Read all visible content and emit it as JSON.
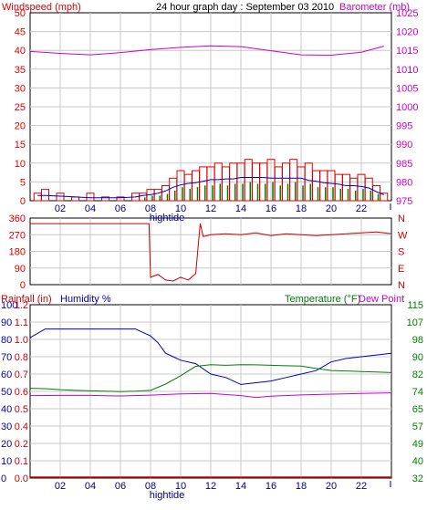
{
  "title": "24 hour graph day : September 03 2010",
  "colors": {
    "wind": "#e00000",
    "wind_avg": "#0000cc",
    "wind_dir_gust": "#008000",
    "barometer": "#cc00cc",
    "wind_dir": "#cc0000",
    "rain": "#cc0000",
    "humidity": "#0000bb",
    "temperature": "#008000",
    "dewpoint": "#cc00cc",
    "grid": "#c8c8c8",
    "frame": "#000000"
  },
  "x_ticks": [
    "02",
    "04",
    "06",
    "08",
    "10",
    "12",
    "14",
    "16",
    "18",
    "20",
    "22"
  ],
  "hightide_label": "hightide",
  "panel1": {
    "left_label": "Windspeed (mph)",
    "right_label": "Barometer (mb)",
    "left_ticks": [
      "0",
      "5",
      "10",
      "15",
      "20",
      "25",
      "30",
      "35",
      "40",
      "45",
      "50"
    ],
    "right_ticks": [
      "975",
      "980",
      "985",
      "990",
      "995",
      "1000",
      "1005",
      "1010",
      "1015",
      "1020",
      "1025"
    ]
  },
  "panel2": {
    "left_ticks": [
      "0",
      "90",
      "180",
      "270",
      "360"
    ],
    "right_ticks": [
      "N",
      "E",
      "S",
      "W",
      "N"
    ]
  },
  "panel3": {
    "rain_label": "Rainfall (in)",
    "humidity_label": "Humidity %",
    "temp_label": "Temperature (°F)",
    "dew_label": "Dew Point",
    "humidity_ticks": [
      "0",
      "10",
      "20",
      "30",
      "40",
      "50",
      "60",
      "70",
      "80",
      "90",
      "100"
    ],
    "rain_ticks": [
      "0.0",
      "0.1",
      "0.2",
      "0.4",
      "0.5",
      "0.6",
      "0.7",
      "0.8",
      "1.0",
      "1.1",
      "1.2"
    ],
    "temp_ticks": [
      "32",
      "40",
      "49",
      "57",
      "65",
      "74",
      "82",
      "90",
      "98",
      "107",
      "115"
    ]
  },
  "chart_data": [
    {
      "type": "bar",
      "title": "24 hour graph day : September 03 2010",
      "x_range_hours": [
        0,
        24
      ],
      "ylabel": "Windspeed (mph)",
      "ylim": [
        0,
        50
      ],
      "y2label": "Barometer (mb)",
      "y2lim": [
        975,
        1025
      ],
      "series": [
        {
          "name": "Windspeed (mph)",
          "x": [
            0.5,
            1,
            2,
            3,
            4,
            5,
            6,
            7,
            7.5,
            8,
            8.5,
            9,
            9.5,
            10,
            10.5,
            11,
            11.5,
            12,
            12.5,
            13,
            13.5,
            14,
            14.5,
            15,
            15.5,
            16,
            16.5,
            17,
            17.5,
            18,
            18.5,
            19,
            19.5,
            20,
            20.5,
            21,
            21.5,
            22,
            22.5,
            23,
            23.5
          ],
          "values": [
            2,
            3,
            2,
            1,
            2,
            1,
            1,
            2,
            2,
            3,
            3,
            4,
            6,
            8,
            7,
            8,
            9,
            9,
            10,
            9,
            10,
            10,
            11,
            10,
            10,
            11,
            9,
            10,
            11,
            9,
            10,
            8,
            8,
            8,
            7,
            7,
            6,
            7,
            6,
            4,
            2
          ]
        },
        {
          "name": "Barometer (mb)",
          "x": [
            0,
            2,
            4,
            6,
            8,
            10,
            12,
            14,
            16,
            18,
            20,
            22,
            23.5
          ],
          "values": [
            1014.7,
            1014.2,
            1013.8,
            1014.4,
            1015.2,
            1015.8,
            1016.2,
            1016.0,
            1014.9,
            1013.8,
            1013.7,
            1014.5,
            1016.1
          ]
        }
      ]
    },
    {
      "type": "line",
      "x_range_hours": [
        0,
        24
      ],
      "ylim": [
        0,
        360
      ],
      "series": [
        {
          "name": "Wind direction",
          "x": [
            0,
            7.9,
            8.0,
            8.5,
            9,
            9.5,
            10,
            10.5,
            11,
            11.3,
            11.5,
            12,
            13,
            14,
            15,
            16,
            17,
            18,
            19,
            20,
            21,
            22,
            23,
            24
          ],
          "values": [
            330,
            330,
            40,
            55,
            25,
            20,
            40,
            25,
            60,
            330,
            260,
            270,
            275,
            270,
            280,
            265,
            275,
            270,
            265,
            270,
            275,
            280,
            285,
            275
          ]
        }
      ]
    },
    {
      "type": "line",
      "x_range_hours": [
        0,
        24
      ],
      "ylim": [
        0,
        100
      ],
      "series": [
        {
          "name": "Humidity %",
          "x": [
            0,
            1,
            2,
            3,
            4,
            5,
            6,
            7,
            7.5,
            8,
            8.5,
            9,
            9.5,
            10,
            11,
            12,
            13,
            14,
            15,
            16,
            17,
            18,
            19,
            20,
            21,
            22,
            23,
            24
          ],
          "values": [
            81,
            86,
            86,
            86,
            86,
            86,
            86,
            86,
            84,
            82,
            78,
            72,
            70,
            68,
            66,
            60,
            58,
            54,
            55,
            56,
            58,
            60,
            62,
            67,
            69,
            70,
            71,
            72
          ]
        },
        {
          "name": "Temperature (°F)",
          "x": [
            0,
            1,
            2,
            3,
            4,
            5,
            6,
            7,
            8,
            9,
            10,
            11,
            12,
            13,
            14,
            15,
            16,
            17,
            18,
            19,
            20,
            21,
            22,
            23,
            24
          ],
          "values": [
            75,
            74.8,
            74.3,
            74.0,
            73.8,
            73.6,
            73.4,
            73.6,
            74.0,
            77.0,
            81.0,
            85.5,
            86.3,
            86.0,
            86.3,
            86.2,
            86.0,
            85.8,
            85.6,
            84.5,
            83.5,
            83.3,
            83.0,
            82.8,
            82.5
          ]
        },
        {
          "name": "Dew Point",
          "x": [
            0,
            2,
            4,
            6,
            8,
            10,
            12,
            14,
            15,
            16,
            18,
            20,
            22,
            24
          ],
          "values": [
            71.5,
            71.6,
            71.6,
            71.3,
            71.7,
            72.3,
            72.5,
            71.5,
            70.6,
            71.2,
            71.8,
            72.2,
            72.5,
            72.8
          ]
        },
        {
          "name": "Rainfall (in)",
          "x": [
            0,
            24
          ],
          "values": [
            0,
            0
          ]
        }
      ]
    }
  ]
}
